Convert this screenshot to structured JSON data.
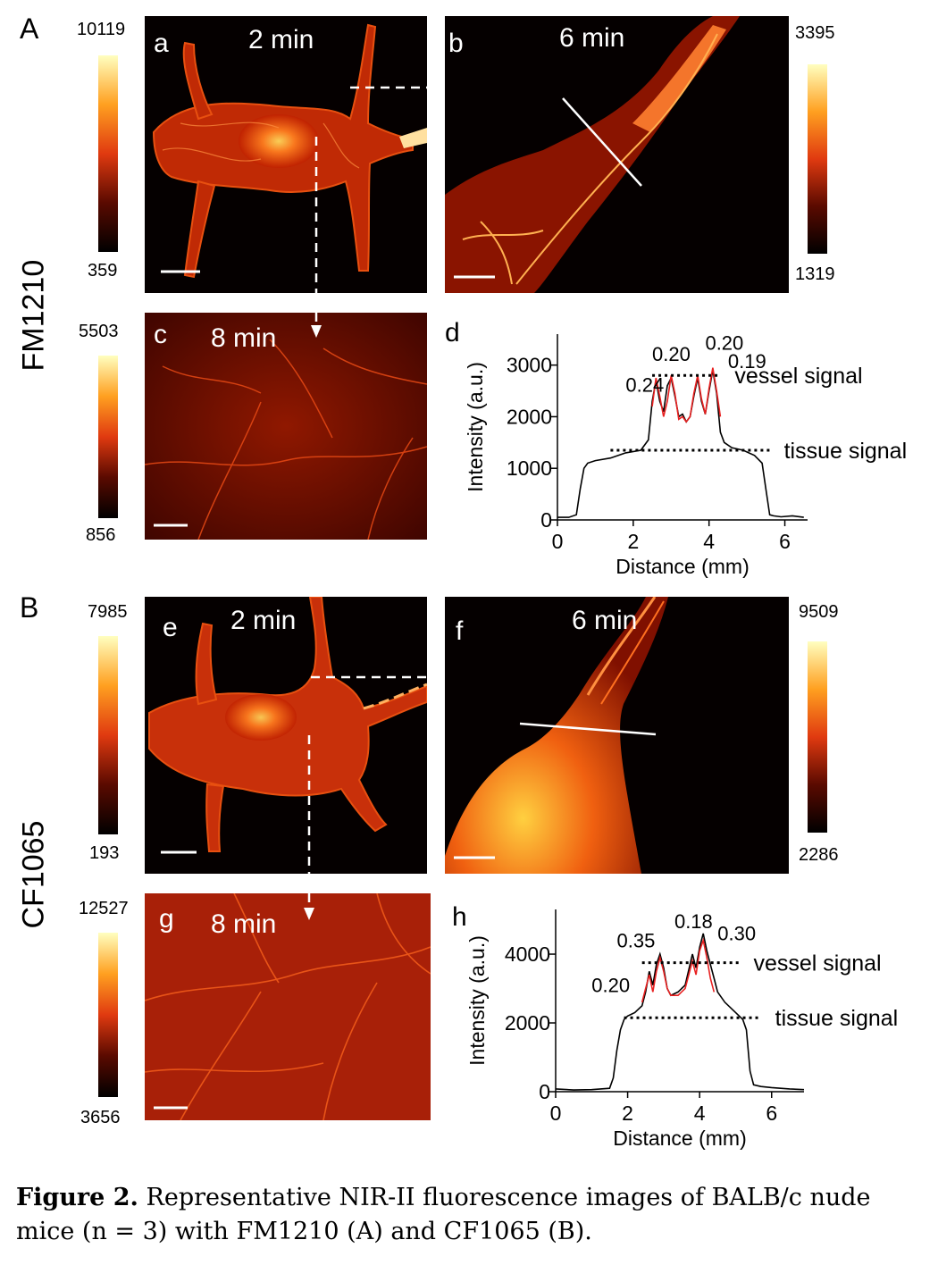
{
  "sections": {
    "A": {
      "letter": "A",
      "dye": "FM1210"
    },
    "B": {
      "letter": "B",
      "dye": "CF1065"
    }
  },
  "panels": {
    "a": {
      "label": "a",
      "time": "2 min",
      "cbar_max": "10119",
      "cbar_min": "359"
    },
    "b": {
      "label": "b",
      "time": "6 min",
      "cbar_max": "3395",
      "cbar_min": "1319"
    },
    "c": {
      "label": "c",
      "time": "8 min",
      "cbar_max": "5503",
      "cbar_min": "856"
    },
    "e": {
      "label": "e",
      "time": "2 min",
      "cbar_max": "7985",
      "cbar_min": "193"
    },
    "f": {
      "label": "f",
      "time": "6 min",
      "cbar_max": "9509",
      "cbar_min": "2286"
    },
    "g": {
      "label": "g",
      "time": "8 min",
      "cbar_max": "12527",
      "cbar_min": "3656"
    }
  },
  "colormap": {
    "low": "#000000",
    "mid": "#e84010",
    "high": "#ffffa0"
  },
  "chart_data": [
    {
      "panel": "d",
      "type": "line",
      "xlabel": "Distance (mm)",
      "ylabel": "Intensity (a.u.)",
      "xlim": [
        0,
        6.6
      ],
      "ylim": [
        0,
        3600
      ],
      "xticks": [
        "0",
        "2",
        "4",
        "6"
      ],
      "xtick_values": [
        0,
        2,
        4,
        6
      ],
      "yticks": [
        "0",
        "1000",
        "2000",
        "3000"
      ],
      "ytick_values": [
        0,
        1000,
        2000,
        3000
      ],
      "series": [
        {
          "color": "#000000",
          "x": [
            0,
            0.3,
            0.5,
            0.6,
            0.7,
            0.8,
            1.0,
            1.4,
            1.8,
            2.2,
            2.4,
            2.5,
            2.6,
            2.7,
            2.8,
            2.9,
            3.0,
            3.1,
            3.2,
            3.3,
            3.4,
            3.5,
            3.6,
            3.7,
            3.8,
            3.9,
            4.0,
            4.1,
            4.2,
            4.3,
            4.4,
            4.6,
            4.9,
            5.2,
            5.4,
            5.5,
            5.6,
            5.7,
            5.9,
            6.2,
            6.5
          ],
          "y": [
            50,
            50,
            100,
            600,
            1000,
            1100,
            1150,
            1200,
            1300,
            1350,
            1550,
            2300,
            2700,
            2300,
            2100,
            2600,
            2750,
            2400,
            2000,
            2050,
            1900,
            2000,
            2400,
            2750,
            2300,
            2050,
            2500,
            2900,
            2450,
            1700,
            1500,
            1400,
            1350,
            1250,
            1100,
            600,
            100,
            80,
            60,
            80,
            50
          ]
        },
        {
          "color": "#e82020",
          "x": [
            2.5,
            2.6,
            2.7,
            2.8,
            2.9,
            3.0,
            3.1,
            3.2,
            3.3,
            3.4,
            3.5,
            3.6,
            3.7,
            3.8,
            3.9,
            4.0,
            4.1,
            4.2,
            4.3
          ],
          "y": [
            2200,
            2750,
            2400,
            2000,
            2300,
            2800,
            2450,
            1950,
            2000,
            1900,
            2000,
            2450,
            2800,
            2350,
            2050,
            2550,
            2950,
            2500,
            2000
          ]
        }
      ],
      "reference_lines": [
        {
          "label": "vessel signal",
          "y": 2800,
          "x": [
            2.5,
            4.3
          ]
        },
        {
          "label": "tissue signal",
          "y": 1350,
          "x": [
            1.4,
            5.6
          ]
        }
      ],
      "annotations": [
        {
          "text": "0.24",
          "x": 1.8,
          "y": 2480
        },
        {
          "text": "0.20",
          "x": 2.5,
          "y": 3080
        },
        {
          "text": "0.20",
          "x": 3.9,
          "y": 3300
        },
        {
          "text": "0.19",
          "x": 4.5,
          "y": 2940
        }
      ]
    },
    {
      "panel": "h",
      "type": "line",
      "xlabel": "Distance (mm)",
      "ylabel": "Intensity (a.u.)",
      "xlim": [
        0,
        6.9
      ],
      "ylim": [
        0,
        5300
      ],
      "xticks": [
        "0",
        "2",
        "4",
        "6"
      ],
      "xtick_values": [
        0,
        2,
        4,
        6
      ],
      "yticks": [
        "0",
        "2000",
        "4000"
      ],
      "ytick_values": [
        0,
        2000,
        4000
      ],
      "series": [
        {
          "color": "#000000",
          "x": [
            0,
            0.5,
            1.0,
            1.5,
            1.6,
            1.7,
            1.8,
            1.9,
            2.0,
            2.2,
            2.4,
            2.5,
            2.6,
            2.7,
            2.8,
            2.9,
            3.0,
            3.1,
            3.2,
            3.4,
            3.6,
            3.8,
            3.9,
            4.0,
            4.1,
            4.2,
            4.3,
            4.4,
            4.5,
            4.7,
            4.9,
            5.1,
            5.2,
            5.3,
            5.4,
            5.5,
            5.7,
            6.0,
            6.5,
            6.9
          ],
          "y": [
            80,
            50,
            60,
            100,
            400,
            1200,
            1800,
            2100,
            2200,
            2300,
            2500,
            2900,
            3500,
            3100,
            3700,
            4000,
            3600,
            3000,
            2800,
            2900,
            3100,
            4000,
            3600,
            4200,
            4600,
            4100,
            3700,
            3300,
            2900,
            2600,
            2400,
            2200,
            2100,
            1800,
            600,
            200,
            150,
            120,
            80,
            60
          ]
        },
        {
          "color": "#e82020",
          "x": [
            2.4,
            2.5,
            2.6,
            2.7,
            2.8,
            2.9,
            3.0,
            3.1,
            3.2,
            3.4,
            3.6,
            3.8,
            3.9,
            4.0,
            4.1,
            4.2,
            4.3,
            4.4
          ],
          "y": [
            2600,
            3000,
            3400,
            2900,
            3500,
            3900,
            3500,
            3000,
            2800,
            2800,
            3000,
            3800,
            3400,
            4100,
            4400,
            3900,
            3300,
            2900
          ]
        }
      ],
      "reference_lines": [
        {
          "label": "vessel signal",
          "y": 3750,
          "x": [
            2.4,
            5.1
          ]
        },
        {
          "label": "tissue signal",
          "y": 2150,
          "x": [
            1.9,
            5.7
          ]
        }
      ],
      "annotations": [
        {
          "text": "0.35",
          "x": 1.7,
          "y": 4200
        },
        {
          "text": "0.18",
          "x": 3.3,
          "y": 4750
        },
        {
          "text": "0.30",
          "x": 4.5,
          "y": 4400
        },
        {
          "text": "0.20",
          "x": 1.0,
          "y": 2900
        }
      ]
    }
  ],
  "caption": {
    "title": "Figure 2.",
    "text": "Representative NIR-II fluorescence images of BALB/c nude mice (n = 3) with FM1210 (A) and CF1065 (B)."
  }
}
